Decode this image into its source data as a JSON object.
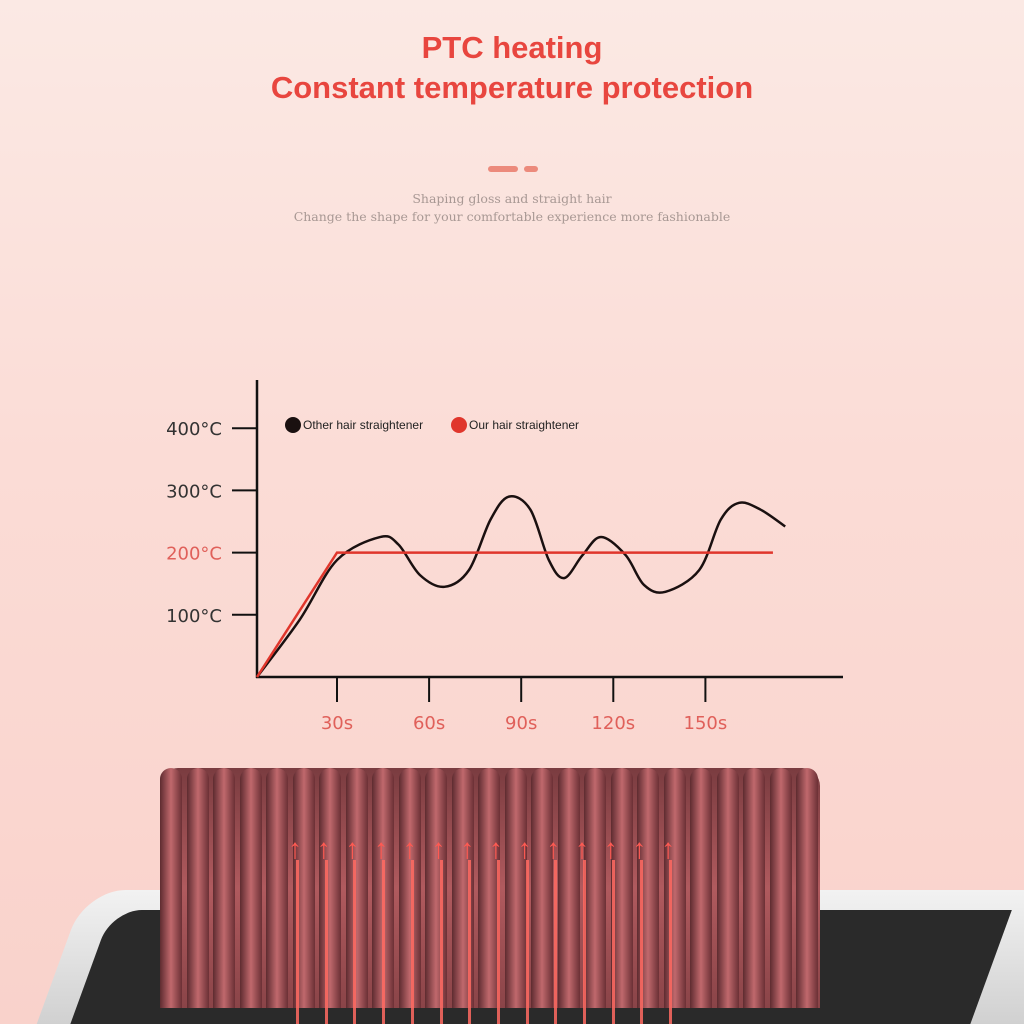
{
  "header": {
    "title": "PTC heating",
    "subtitle": "Constant temperature protection",
    "tagline1": "Shaping gloss and straight hair",
    "tagline2": "Change the shape for your comfortable experience more fashionable"
  },
  "colors": {
    "accent": "#e8463f",
    "other": "#1a1010",
    "ours": "#e0362c"
  },
  "chart_data": {
    "type": "line",
    "xlim": [
      0,
      180
    ],
    "ylim": [
      0,
      450
    ],
    "x_ticks": [
      30,
      60,
      90,
      120,
      150
    ],
    "x_tick_labels": [
      "30s",
      "60s",
      "90s",
      "120s",
      "150s"
    ],
    "y_ticks": [
      100,
      200,
      300,
      400
    ],
    "y_tick_labels": [
      "100°C",
      "200°C",
      "300°C",
      "400°C"
    ],
    "highlight_y_tick": "200°C",
    "legend_placement": "top-left",
    "grid": false,
    "series": [
      {
        "name": "Other hair straightener",
        "color": "#1a1010",
        "points": [
          [
            0,
            0
          ],
          [
            16,
            92
          ],
          [
            30,
            188
          ],
          [
            44,
            225
          ],
          [
            50,
            213
          ],
          [
            57,
            164
          ],
          [
            65,
            145
          ],
          [
            73,
            172
          ],
          [
            80,
            253
          ],
          [
            86,
            290
          ],
          [
            93,
            269
          ],
          [
            99,
            188
          ],
          [
            104,
            159
          ],
          [
            110,
            196
          ],
          [
            116,
            225
          ],
          [
            124,
            196
          ],
          [
            130,
            148
          ],
          [
            137,
            137
          ],
          [
            148,
            172
          ],
          [
            155,
            253
          ],
          [
            161,
            280
          ],
          [
            168,
            269
          ],
          [
            176,
            242
          ]
        ]
      },
      {
        "name": "Our hair straightener",
        "color": "#e0362c",
        "points": [
          [
            0,
            0
          ],
          [
            30,
            200
          ],
          [
            172,
            200
          ]
        ]
      }
    ]
  },
  "product": {
    "icon": "heating-comb-brush",
    "arrow_icon": "heat-up-arrow"
  }
}
